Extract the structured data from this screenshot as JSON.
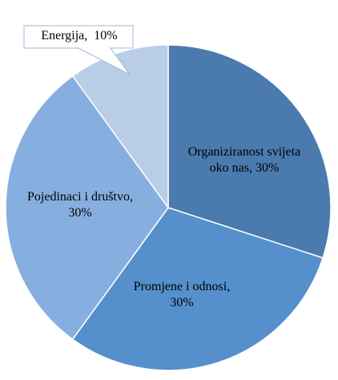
{
  "chart_data": {
    "type": "pie",
    "values": [
      30,
      30,
      30,
      10
    ],
    "value_labels": [
      "Organiziranost svijeta  oko nas, 30%",
      "Promjene i odnosi, 30%",
      "Pojedinaci i društvo, 30%",
      "Energija,  10%"
    ],
    "colors": [
      "#4a7aae",
      "#5590cc",
      "#86afdf",
      "#b9cde7"
    ]
  }
}
